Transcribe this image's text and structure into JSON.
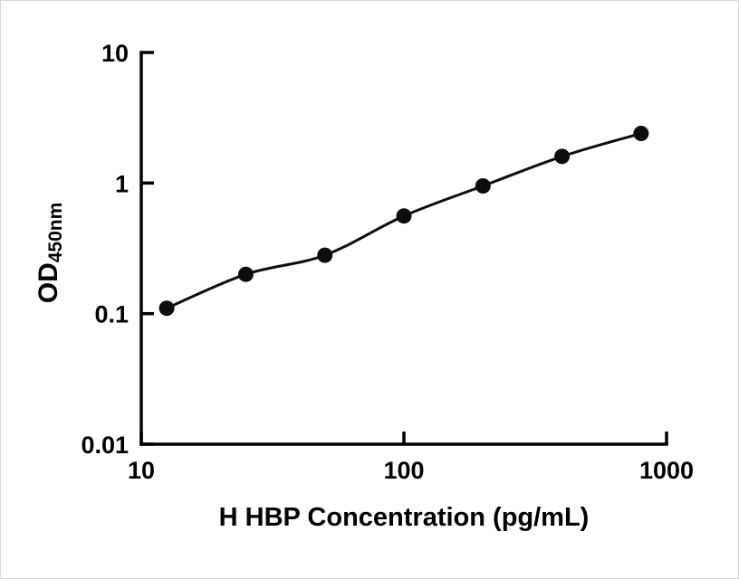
{
  "chart_data": {
    "type": "scatter",
    "title": "",
    "x": [
      12.5,
      25,
      50,
      100,
      200,
      400,
      800
    ],
    "y": [
      0.11,
      0.2,
      0.28,
      0.56,
      0.95,
      1.6,
      2.4
    ],
    "x_scale": "log",
    "y_scale": "log",
    "xlim": [
      10,
      1000
    ],
    "ylim": [
      0.01,
      10
    ],
    "x_ticks": [
      10,
      100,
      1000
    ],
    "x_tick_labels": [
      "10",
      "100",
      "1000"
    ],
    "y_ticks": [
      10,
      1,
      0.1,
      0.01
    ],
    "y_tick_labels": [
      "10",
      "1",
      "0.1",
      "0.01"
    ],
    "xlabel": "H HBP Concentration (pg/mL)",
    "ylabel_main": "OD",
    "ylabel_sub": "450nm",
    "has_fit_line": true,
    "legend": "none",
    "grid": false,
    "marker_color": "#0d0d0d",
    "line_color": "#0d0d0d",
    "axis_color": "#000000"
  }
}
